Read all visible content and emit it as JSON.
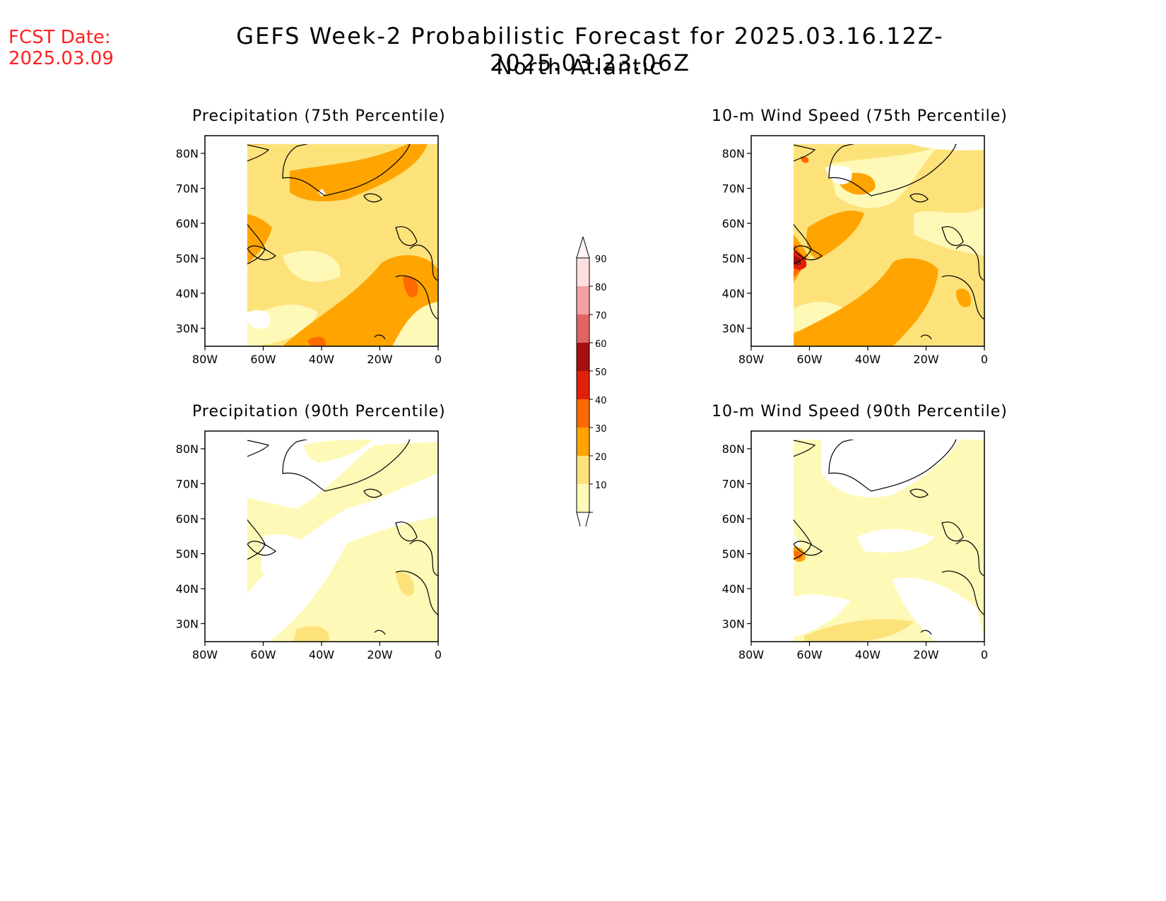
{
  "header": {
    "fcst_label": "FCST Date:",
    "fcst_date": "2025.03.09",
    "title": "GEFS Week-2 Probabilistic Forecast for 2025.03.16.12Z-2025.03.23.06Z",
    "subtitle": "North Atlantic"
  },
  "panels": [
    {
      "title": "Precipitation (75th Percentile)"
    },
    {
      "title": "10-m Wind Speed (75th Percentile)"
    },
    {
      "title": "Precipitation (90th Percentile)"
    },
    {
      "title": "10-m Wind Speed (90th Percentile)"
    }
  ],
  "axes": {
    "lat_labels": [
      "80N",
      "70N",
      "60N",
      "50N",
      "40N",
      "30N"
    ],
    "lon_labels": [
      "80W",
      "60W",
      "40W",
      "20W",
      "0"
    ]
  },
  "colorbar": {
    "labels": [
      "90",
      "80",
      "70",
      "60",
      "50",
      "40",
      "30",
      "20",
      "10"
    ],
    "colors": {
      "lt10": "#ffffff",
      "c10": "#fff9b8",
      "c20": "#fde27a",
      "c30": "#ffa400",
      "c40": "#ff6a00",
      "c50": "#e0200a",
      "c60": "#a50f0f",
      "c70": "#e06464",
      "c80": "#f4a0a0",
      "c90": "#ffe0e0"
    }
  }
}
